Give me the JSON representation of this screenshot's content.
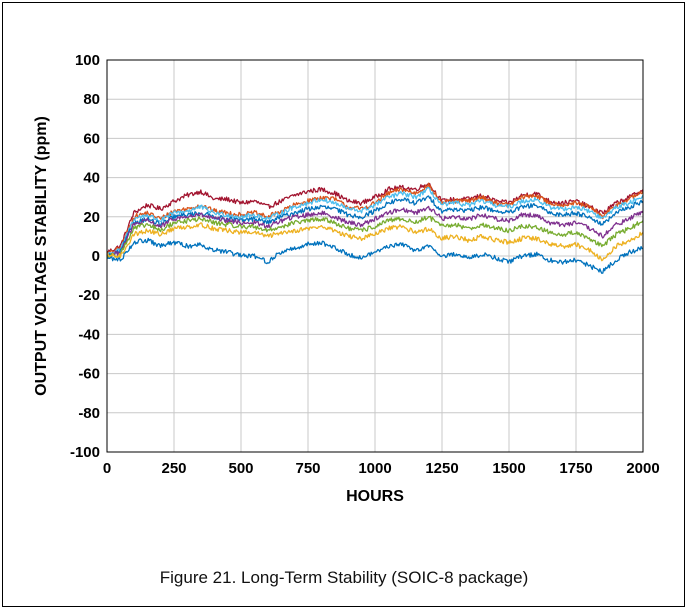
{
  "caption": "Figure 21. Long-Term Stability (SOIC-8 package)",
  "chart_data": {
    "type": "line",
    "title": "",
    "xlabel": "HOURS",
    "ylabel": "OUTPUT VOLTAGE STABILITY (ppm)",
    "xlim": [
      0,
      2000
    ],
    "ylim": [
      -100,
      100
    ],
    "x_ticks": [
      "0",
      "250",
      "500",
      "750",
      "1000",
      "1250",
      "1500",
      "1750",
      "2000"
    ],
    "y_ticks": [
      "100",
      "80",
      "60",
      "40",
      "20",
      "0",
      "-20",
      "-40",
      "-60",
      "-80",
      "-100"
    ],
    "grid": true,
    "legend": "none",
    "x": [
      0,
      50,
      100,
      150,
      200,
      250,
      300,
      350,
      400,
      450,
      500,
      550,
      600,
      650,
      700,
      750,
      800,
      850,
      900,
      950,
      1000,
      1050,
      1100,
      1150,
      1200,
      1250,
      1300,
      1350,
      1400,
      1450,
      1500,
      1550,
      1600,
      1650,
      1700,
      1750,
      1800,
      1850,
      1900,
      1950,
      2000
    ],
    "series": [
      {
        "color": "#a2142f",
        "values": [
          2,
          5,
          22,
          26,
          24,
          28,
          31,
          33,
          29,
          29,
          27,
          28,
          25,
          28,
          31,
          33,
          34,
          32,
          28,
          27,
          30,
          34,
          35,
          34,
          37,
          28,
          29,
          29,
          31,
          28,
          27,
          31,
          32,
          28,
          27,
          28,
          25,
          22,
          27,
          30,
          34
        ]
      },
      {
        "color": "#d95319",
        "values": [
          1,
          4,
          20,
          22,
          19,
          23,
          24,
          26,
          23,
          22,
          21,
          22,
          20,
          23,
          26,
          28,
          30,
          29,
          25,
          24,
          27,
          32,
          34,
          32,
          36,
          27,
          28,
          28,
          30,
          27,
          26,
          30,
          31,
          27,
          26,
          27,
          25,
          20,
          26,
          29,
          33
        ]
      },
      {
        "color": "#4dbeee",
        "values": [
          1,
          3,
          19,
          21,
          18,
          22,
          23,
          25,
          22,
          21,
          20,
          21,
          19,
          22,
          25,
          27,
          29,
          27,
          24,
          23,
          26,
          30,
          32,
          30,
          34,
          26,
          27,
          26,
          28,
          26,
          25,
          28,
          29,
          25,
          24,
          25,
          23,
          19,
          25,
          27,
          31
        ]
      },
      {
        "color": "#0072bd",
        "values": [
          0,
          2,
          17,
          19,
          16,
          20,
          21,
          22,
          20,
          19,
          18,
          19,
          17,
          20,
          22,
          24,
          25,
          24,
          21,
          20,
          23,
          27,
          29,
          27,
          30,
          23,
          24,
          23,
          25,
          23,
          22,
          25,
          26,
          22,
          21,
          22,
          20,
          16,
          22,
          25,
          28
        ]
      },
      {
        "color": "#7e2f8e",
        "values": [
          0,
          2,
          16,
          18,
          15,
          19,
          20,
          21,
          19,
          18,
          17,
          17,
          15,
          18,
          20,
          21,
          22,
          20,
          17,
          16,
          19,
          22,
          24,
          22,
          25,
          19,
          20,
          19,
          21,
          19,
          18,
          21,
          21,
          17,
          16,
          17,
          14,
          10,
          16,
          19,
          23
        ]
      },
      {
        "color": "#77ac30",
        "values": [
          0,
          1,
          14,
          16,
          13,
          17,
          18,
          19,
          17,
          16,
          15,
          15,
          13,
          15,
          17,
          18,
          19,
          17,
          14,
          13,
          15,
          18,
          19,
          17,
          20,
          15,
          16,
          14,
          16,
          14,
          13,
          15,
          15,
          12,
          11,
          12,
          9,
          5,
          11,
          14,
          18
        ]
      },
      {
        "color": "#edb120",
        "values": [
          0,
          0,
          11,
          13,
          11,
          14,
          15,
          16,
          14,
          13,
          12,
          12,
          10,
          12,
          13,
          14,
          15,
          13,
          10,
          9,
          11,
          14,
          15,
          12,
          14,
          9,
          10,
          8,
          10,
          8,
          7,
          9,
          9,
          6,
          5,
          6,
          3,
          -2,
          5,
          8,
          12
        ]
      },
      {
        "color": "#0072bd",
        "values": [
          -1,
          -2,
          7,
          8,
          5,
          7,
          5,
          6,
          3,
          2,
          0,
          0,
          -3,
          2,
          4,
          6,
          7,
          4,
          1,
          -1,
          2,
          5,
          6,
          3,
          5,
          0,
          1,
          -1,
          1,
          -1,
          -3,
          0,
          1,
          -2,
          -3,
          -2,
          -5,
          -8,
          -2,
          2,
          4
        ]
      }
    ]
  }
}
